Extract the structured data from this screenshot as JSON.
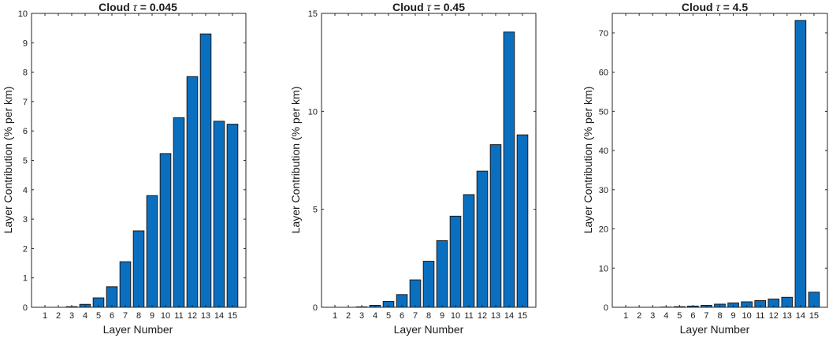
{
  "chart_data": [
    {
      "type": "bar",
      "title": "Cloud τ = 0.045",
      "title_prefix": "Cloud ",
      "title_symbol": "τ",
      "title_suffix": " = 0.045",
      "xlabel": "Layer Number",
      "ylabel": "Layer Contribution (% per km)",
      "categories": [
        "1",
        "2",
        "3",
        "4",
        "5",
        "6",
        "7",
        "8",
        "9",
        "10",
        "11",
        "12",
        "13",
        "14",
        "15"
      ],
      "values": [
        0,
        0,
        0.02,
        0.1,
        0.32,
        0.7,
        1.55,
        2.6,
        3.8,
        5.23,
        6.45,
        7.85,
        9.3,
        6.33,
        6.23
      ],
      "ylim": [
        0,
        10
      ],
      "yticks": [
        0,
        1,
        2,
        3,
        4,
        5,
        6,
        7,
        8,
        9,
        10
      ],
      "grid": false,
      "color": "#0b6fc0"
    },
    {
      "type": "bar",
      "title": "Cloud τ = 0.45",
      "title_prefix": "Cloud ",
      "title_symbol": "τ",
      "title_suffix": " = 0.45",
      "xlabel": "Layer Number",
      "ylabel": "Layer Contribution (% per km)",
      "categories": [
        "1",
        "2",
        "3",
        "4",
        "5",
        "6",
        "7",
        "8",
        "9",
        "10",
        "11",
        "12",
        "13",
        "14",
        "15"
      ],
      "values": [
        0,
        0,
        0.02,
        0.1,
        0.3,
        0.65,
        1.4,
        2.35,
        3.4,
        4.65,
        5.75,
        6.95,
        8.3,
        14.05,
        8.8
      ],
      "ylim": [
        0,
        15
      ],
      "yticks": [
        0,
        5,
        10,
        15
      ],
      "grid": false,
      "color": "#0b6fc0"
    },
    {
      "type": "bar",
      "title": "Cloud τ = 4.5",
      "title_prefix": "Cloud ",
      "title_symbol": "τ",
      "title_suffix": " = 4.5",
      "xlabel": "Layer Number",
      "ylabel": "Layer Contribution (% per km)",
      "categories": [
        "1",
        "2",
        "3",
        "4",
        "5",
        "6",
        "7",
        "8",
        "9",
        "10",
        "11",
        "12",
        "13",
        "14",
        "15"
      ],
      "values": [
        0,
        0,
        0,
        0.05,
        0.15,
        0.3,
        0.5,
        0.8,
        1.1,
        1.4,
        1.7,
        2.1,
        2.55,
        73.2,
        3.85
      ],
      "ylim": [
        0,
        75
      ],
      "yticks": [
        0,
        10,
        20,
        30,
        40,
        50,
        60,
        70
      ],
      "grid": false,
      "color": "#0b6fc0"
    }
  ]
}
